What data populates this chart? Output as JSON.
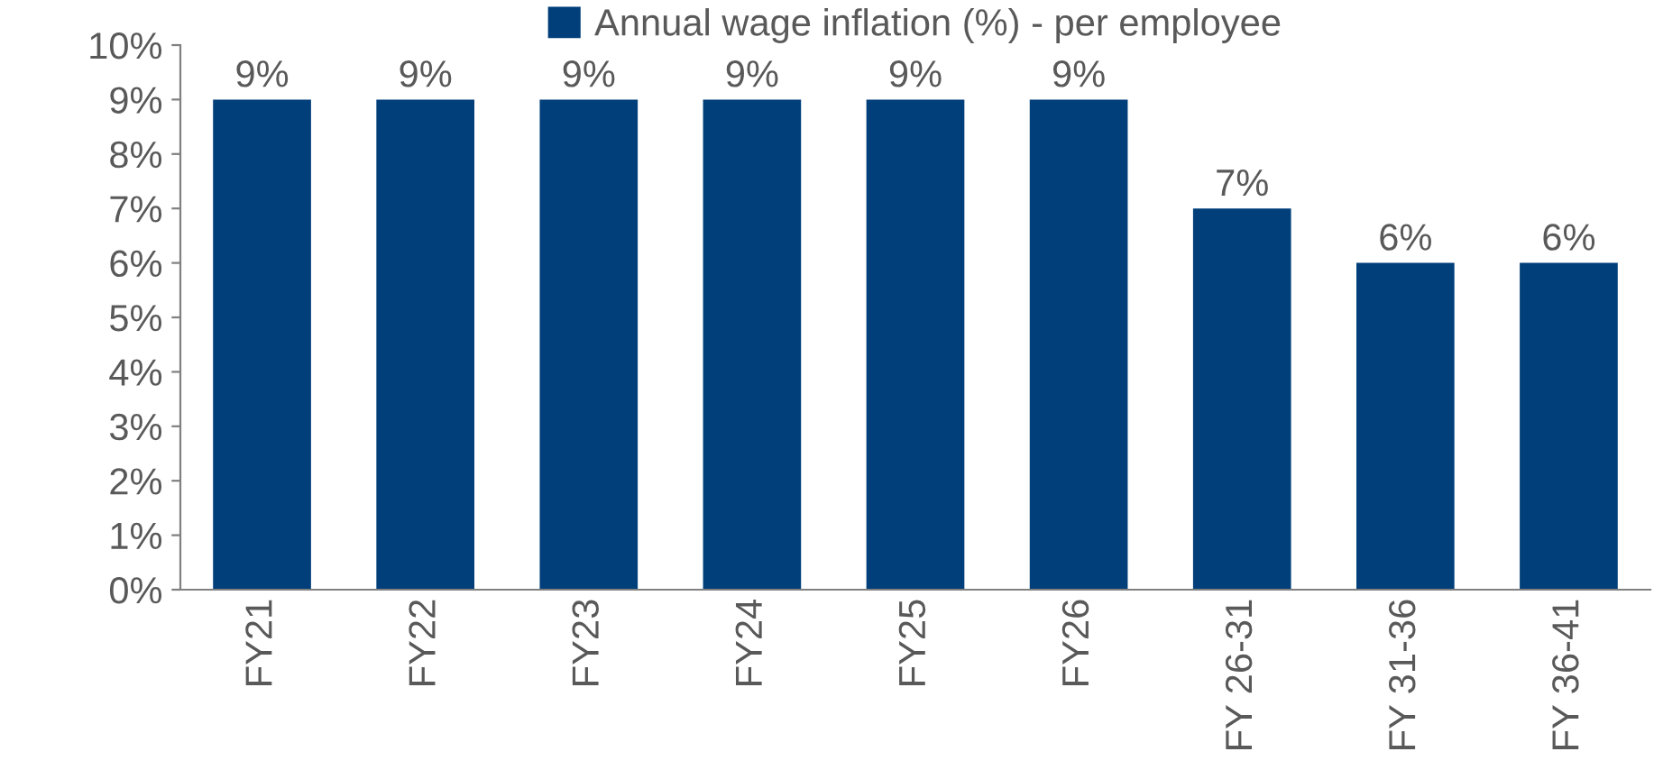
{
  "chart_data": {
    "type": "bar",
    "categories": [
      "FY21",
      "FY22",
      "FY23",
      "FY24",
      "FY25",
      "FY26",
      "FY 26-31",
      "FY 31-36",
      "FY 36-41"
    ],
    "series": [
      {
        "name": "Annual wage inflation (%) - per employee",
        "color": "#003f7a",
        "values": [
          9,
          9,
          9,
          9,
          9,
          9,
          7,
          6,
          6
        ],
        "value_labels": [
          "9%",
          "9%",
          "9%",
          "9%",
          "9%",
          "9%",
          "7%",
          "6%",
          "6%"
        ]
      }
    ],
    "ylim": [
      0,
      10
    ],
    "yticks": [
      {
        "value": 0,
        "label": "0%"
      },
      {
        "value": 1,
        "label": "1%"
      },
      {
        "value": 2,
        "label": "2%"
      },
      {
        "value": 3,
        "label": "3%"
      },
      {
        "value": 4,
        "label": "4%"
      },
      {
        "value": 5,
        "label": "5%"
      },
      {
        "value": 6,
        "label": "6%"
      },
      {
        "value": 7,
        "label": "7%"
      },
      {
        "value": 8,
        "label": "8%"
      },
      {
        "value": 9,
        "label": "9%"
      },
      {
        "value": 10,
        "label": "10%"
      }
    ],
    "grid": false,
    "legend": "top"
  }
}
